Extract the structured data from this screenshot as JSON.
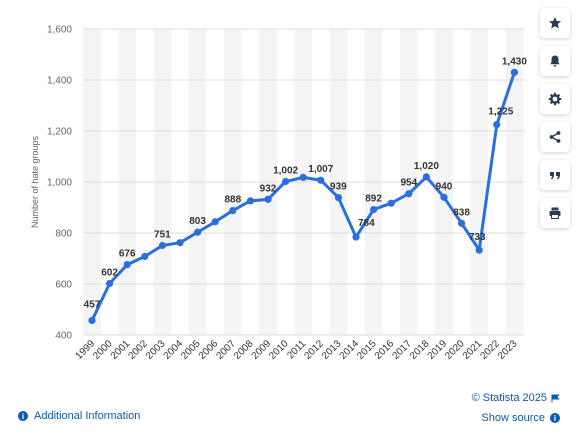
{
  "chart_data": {
    "type": "line",
    "title": "",
    "xlabel": "",
    "ylabel": "Number of hate groups",
    "ylim": [
      400,
      1600
    ],
    "yticks": [
      "400",
      "600",
      "800",
      "1,000",
      "1,200",
      "1,400",
      "1,600"
    ],
    "grid": true,
    "categories": [
      "1999",
      "2000",
      "2001",
      "2002",
      "2003",
      "2004",
      "2005",
      "2006",
      "2007",
      "2008",
      "2009",
      "2010",
      "2011",
      "2012",
      "2013",
      "2014",
      "2015",
      "2016",
      "2017",
      "2018",
      "2019",
      "2020",
      "2021",
      "2022",
      "2023"
    ],
    "series": [
      {
        "name": "",
        "values": [
          457,
          602,
          676,
          708,
          751,
          762,
          803,
          844,
          888,
          926,
          932,
          1002,
          1018,
          1007,
          939,
          784,
          892,
          917,
          954,
          1020,
          940,
          838,
          733,
          1225,
          1430
        ],
        "labels": [
          "457",
          "602",
          "676",
          "",
          "751",
          "",
          "803",
          "",
          "888",
          "",
          "932",
          "1,002",
          "",
          "1,007",
          "939",
          "784",
          "892",
          "",
          "954",
          "1,020",
          "940",
          "838",
          "733",
          "1,225",
          "1,430"
        ]
      }
    ],
    "color": "#2a6fdb"
  },
  "sidebar": {
    "buttons": [
      {
        "icon": "star-icon"
      },
      {
        "icon": "bell-icon"
      },
      {
        "icon": "gear-icon"
      },
      {
        "icon": "share-icon"
      },
      {
        "icon": "quote-icon"
      },
      {
        "icon": "print-icon"
      }
    ]
  },
  "footer": {
    "additional_info": "Additional Information",
    "credit": "© Statista 2025",
    "show_source": "Show source"
  }
}
